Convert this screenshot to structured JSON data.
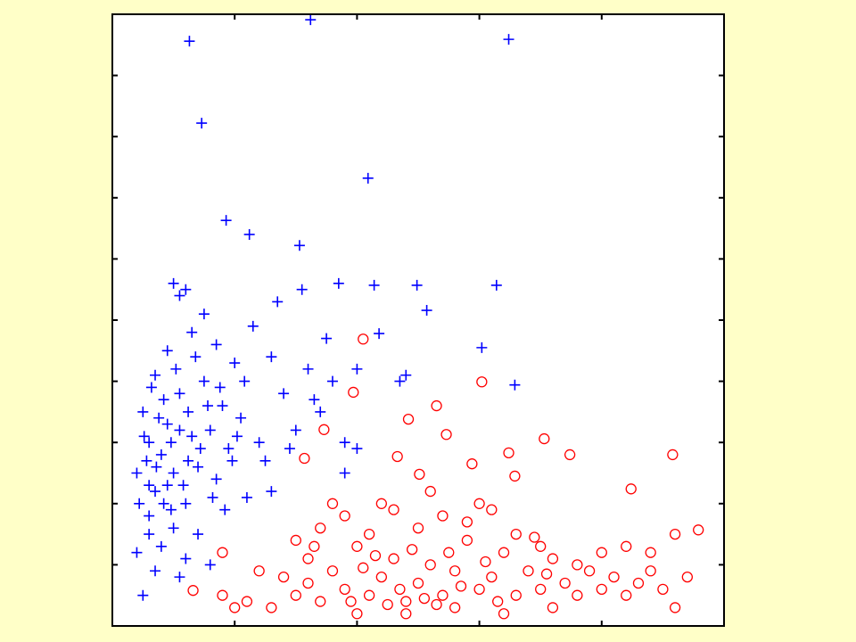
{
  "chart_data": {
    "type": "scatter",
    "xlim": [
      0,
      5
    ],
    "xticks": [
      0,
      1,
      2,
      3,
      4,
      5
    ],
    "ylim": [
      0,
      10
    ],
    "yticks": [
      0,
      1,
      2,
      3,
      4,
      5,
      6,
      7,
      8,
      9,
      10
    ],
    "series": [
      {
        "color": "#0000ff",
        "marker": "plus",
        "x": [
          1.62,
          0.63,
          3.24,
          0.73,
          2.09,
          0.93,
          1.53,
          1.12,
          2.14,
          3.14,
          2.57,
          3.02,
          3.29,
          2.49,
          2.18,
          0.2,
          0.25,
          0.3,
          0.2,
          0.3,
          0.25,
          0.35,
          0.4,
          0.45,
          0.5,
          0.55,
          0.6,
          0.65,
          0.7,
          0.75,
          0.8,
          0.85,
          0.9,
          0.95,
          1,
          1.05,
          1.1,
          1.15,
          1.2,
          0.35,
          0.45,
          0.55,
          0.65,
          0.75,
          0.85,
          0.6,
          0.5,
          0.4,
          0.5,
          0.6,
          0.7,
          0.8,
          0.55,
          0.35,
          0.3,
          1.3,
          1.4,
          1.5,
          1.6,
          1.7,
          1.8,
          1.9,
          2,
          1.35,
          1.25,
          1.45,
          1.65,
          1.75,
          1.9,
          2,
          1.3,
          1.55,
          1.85,
          2.35,
          2.4,
          0.22,
          0.28,
          0.32,
          0.38,
          0.42,
          0.48,
          0.52,
          0.58,
          0.62,
          0.68,
          0.72,
          0.78,
          0.82,
          0.88,
          0.92,
          0.98,
          1.02,
          1.08,
          0.45,
          0.55,
          0.48,
          0.62,
          0.42,
          0.3,
          0.26,
          0.36
        ],
        "y": [
          9.91,
          9.56,
          9.59,
          8.22,
          7.32,
          6.63,
          6.22,
          6.4,
          5.57,
          5.57,
          5.16,
          4.55,
          3.94,
          5.57,
          4.78,
          1.2,
          0.5,
          1.8,
          2.5,
          3,
          3.5,
          2.2,
          2.8,
          3.3,
          2.5,
          3.8,
          2,
          3.1,
          2.6,
          4,
          3.2,
          2.4,
          3.6,
          2.9,
          4.3,
          3.4,
          2.1,
          4.9,
          3,
          4.1,
          4.5,
          5.4,
          4.8,
          5.1,
          4.6,
          5.5,
          5.6,
          1.3,
          1.6,
          1.1,
          1.5,
          1,
          0.8,
          0.9,
          1.5,
          4.4,
          3.8,
          3.2,
          4.2,
          3.5,
          4,
          3,
          4.2,
          5.3,
          2.7,
          2.9,
          3.7,
          4.7,
          2.5,
          2.9,
          2.2,
          5.5,
          5.6,
          4,
          4.1,
          2,
          2.7,
          3.9,
          3.4,
          2,
          3,
          4.2,
          2.3,
          3.5,
          4.4,
          2.9,
          3.6,
          2.1,
          3.9,
          1.9,
          2.7,
          3.1,
          4,
          2.3,
          3.2,
          1.9,
          2.7,
          3.7,
          2.3,
          3.1,
          2.6
        ]
      },
      {
        "color": "#ff0000",
        "marker": "circle",
        "x": [
          2.05,
          3.02,
          1.97,
          2.65,
          2.42,
          1.73,
          3.53,
          3.24,
          3.74,
          4.58,
          2.33,
          1.57,
          4.24,
          3.29,
          4.79,
          0.66,
          0.9,
          2.73,
          2.94,
          2.51,
          1.3,
          1.4,
          1.5,
          1.6,
          1.7,
          1.8,
          1.9,
          2,
          2.1,
          2.2,
          2.3,
          2.4,
          2.5,
          2.6,
          2.7,
          2.8,
          2.9,
          3,
          3.1,
          3.2,
          3.3,
          3.4,
          3.5,
          3.6,
          3.7,
          3.8,
          3.9,
          4,
          4.1,
          4.2,
          4.3,
          4.4,
          4.5,
          4.6,
          4.7,
          1.5,
          1.7,
          1.9,
          2.1,
          2.3,
          2.5,
          2.7,
          2.9,
          3.1,
          3.3,
          3.5,
          2.2,
          2.6,
          1.8,
          3,
          1.2,
          1.1,
          1,
          0.9,
          2,
          2.4,
          2.8,
          3.2,
          3.6,
          4.4,
          4.6,
          4.2,
          4,
          3.8,
          1.6,
          2.05,
          2.45,
          2.65,
          2.85,
          3.05,
          3.45,
          2.35,
          1.95,
          2.15,
          2.55,
          3.15,
          3.55,
          2.75,
          2.25,
          1.65
        ],
        "y": [
          4.69,
          3.99,
          3.82,
          3.6,
          3.38,
          3.21,
          3.06,
          2.83,
          2.8,
          2.8,
          2.77,
          2.74,
          2.24,
          2.45,
          1.57,
          0.58,
          1.2,
          3.13,
          2.65,
          2.48,
          0.3,
          0.8,
          0.5,
          1.1,
          0.4,
          0.9,
          0.6,
          1.3,
          0.5,
          0.8,
          1.1,
          0.4,
          0.7,
          1,
          0.5,
          0.9,
          1.4,
          0.6,
          0.8,
          1.2,
          0.5,
          0.9,
          0.6,
          1.1,
          0.7,
          0.5,
          0.9,
          0.6,
          0.8,
          0.5,
          0.7,
          0.9,
          0.6,
          0.3,
          0.8,
          1.4,
          1.6,
          1.8,
          1.5,
          1.9,
          1.6,
          1.8,
          1.7,
          1.9,
          1.5,
          1.3,
          2,
          2.2,
          2,
          2,
          0.9,
          0.4,
          0.3,
          0.5,
          0.2,
          0.2,
          0.3,
          0.2,
          0.3,
          1.2,
          1.5,
          1.3,
          1.2,
          1,
          0.7,
          0.95,
          1.25,
          0.35,
          0.65,
          1.05,
          1.45,
          0.6,
          0.4,
          1.15,
          0.45,
          0.4,
          0.85,
          1.2,
          0.35,
          1.3
        ]
      }
    ]
  }
}
